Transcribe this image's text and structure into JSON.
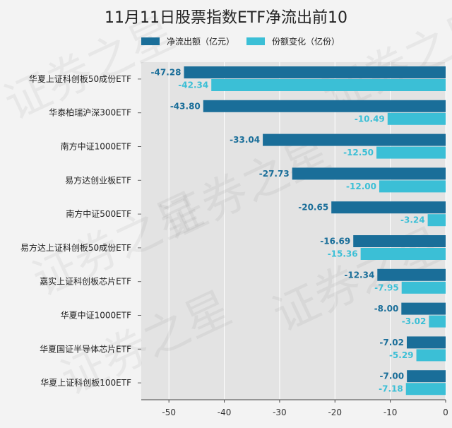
{
  "chart_data": {
    "type": "bar",
    "orientation": "horizontal",
    "title": "11月11日股票指数ETF净流出前10",
    "categories": [
      "华夏上证科创板50成份ETF",
      "华泰柏瑞沪深300ETF",
      "南方中证1000ETF",
      "易方达创业板ETF",
      "南方中证500ETF",
      "易方达上证科创板50成份ETF",
      "嘉实上证科创板芯片ETF",
      "华夏中证1000ETF",
      "华夏国证半导体芯片ETF",
      "华夏上证科创板100ETF"
    ],
    "series": [
      {
        "name": "净流出额（亿元）",
        "color": "#1a6e99",
        "values": [
          -47.28,
          -43.8,
          -33.04,
          -27.73,
          -20.65,
          -16.69,
          -12.34,
          -8.0,
          -7.02,
          -7.0
        ],
        "labels": [
          "-47.28",
          "-43.80",
          "-33.04",
          "-27.73",
          "-20.65",
          "-16.69",
          "-12.34",
          "-8.00",
          "-7.02",
          "-7.00"
        ]
      },
      {
        "name": "份额变化（亿份）",
        "color": "#3bbfd6",
        "values": [
          -42.34,
          -10.49,
          -12.5,
          -12.0,
          -3.24,
          -15.36,
          -7.95,
          -3.02,
          -5.29,
          -7.18
        ],
        "labels": [
          "-42.34",
          "-10.49",
          "-12.50",
          "-12.00",
          "-3.24",
          "-15.36",
          "-7.95",
          "-3.02",
          "-5.29",
          "-7.18"
        ]
      }
    ],
    "xlim": [
      -55,
      0
    ],
    "xticks": [
      -50,
      -40,
      -30,
      -20,
      -10,
      0
    ],
    "xtick_labels": [
      "-50",
      "-40",
      "-30",
      "-20",
      "-10",
      "0"
    ],
    "xlabel": "",
    "ylabel": "",
    "legend_position": "top",
    "grid": "vertical",
    "watermark": "证券之星"
  }
}
